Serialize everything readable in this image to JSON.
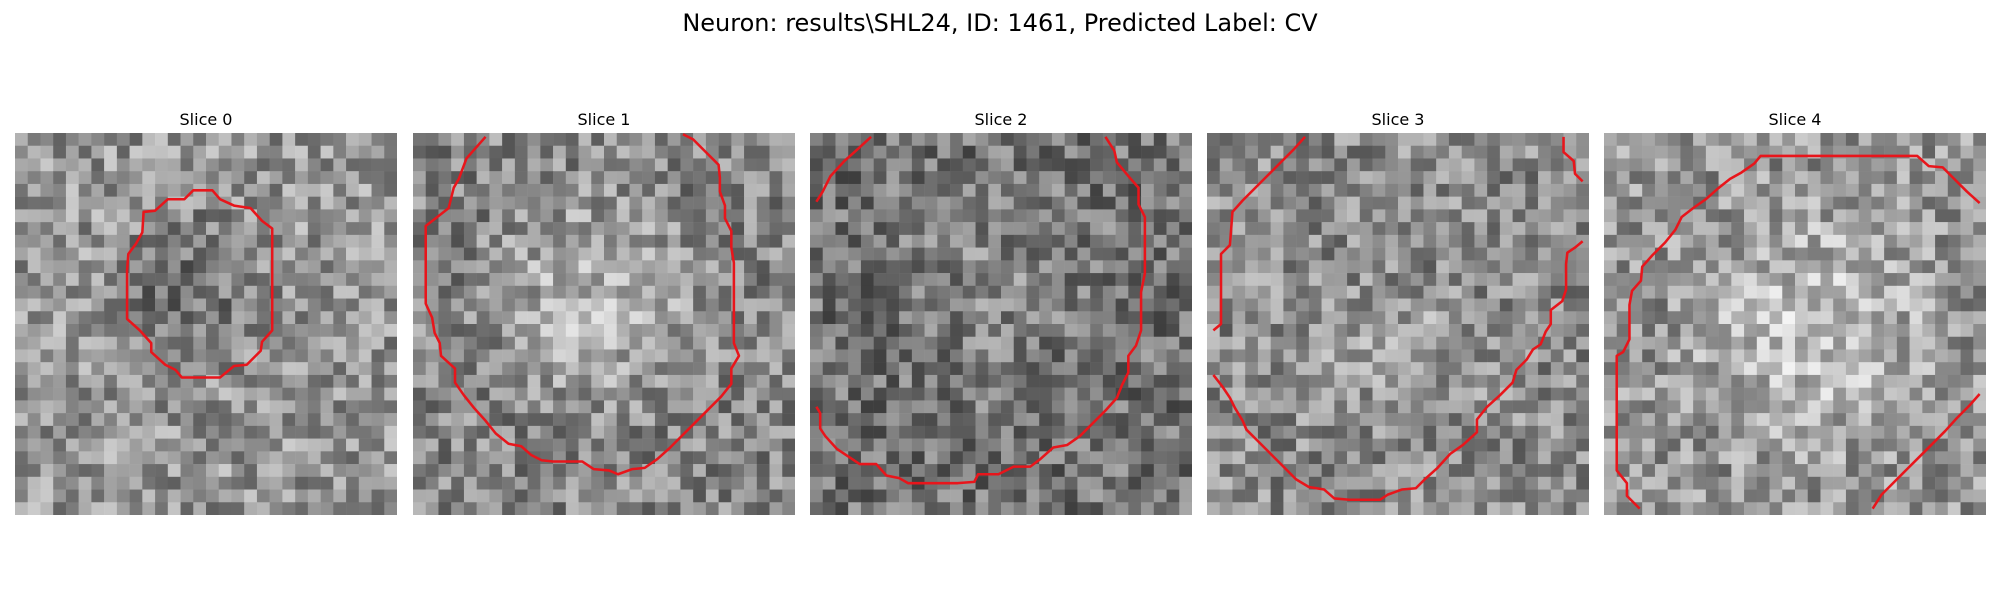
{
  "figure": {
    "title": "Neuron: results\\SHL24, ID: 1461, Predicted Label: CV",
    "contour_color": "#e8151b"
  },
  "panels": [
    {
      "title": "Slice 0",
      "mean_gray": 150,
      "blob_center": [
        0.45,
        0.42
      ],
      "blob_radius": 0.28,
      "blob_delta": -45,
      "blob_lower_only": false
    },
    {
      "title": "Slice 1",
      "mean_gray": 135,
      "blob_center": [
        0.48,
        0.45
      ],
      "blob_radius": 0.36,
      "blob_delta": 55,
      "blob_lower_only": false
    },
    {
      "title": "Slice 2",
      "mean_gray": 115,
      "blob_center": [
        0.5,
        0.4
      ],
      "blob_radius": 0.35,
      "blob_delta": 25,
      "blob_lower_only": false
    },
    {
      "title": "Slice 3",
      "mean_gray": 140,
      "blob_center": [
        0.5,
        0.45
      ],
      "blob_radius": 0.37,
      "blob_delta": 25,
      "blob_lower_only": true
    },
    {
      "title": "Slice 4",
      "mean_gray": 150,
      "blob_center": [
        0.55,
        0.52
      ],
      "blob_radius": 0.4,
      "blob_delta": 55,
      "blob_lower_only": false
    }
  ]
}
